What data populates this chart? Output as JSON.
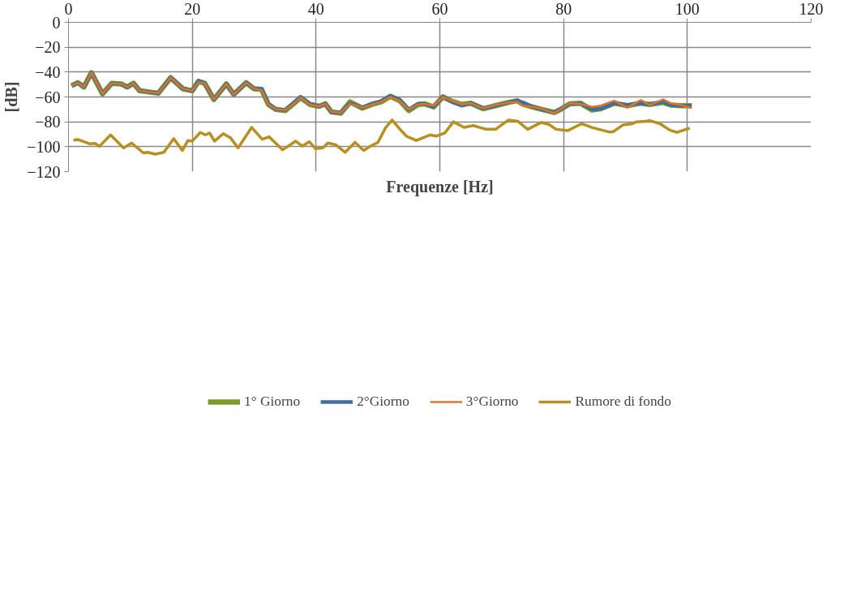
{
  "chart_data": {
    "type": "line",
    "xlabel": "Frequenze [Hz]",
    "ylabel": "[dB]",
    "xlim": [
      0,
      120
    ],
    "xticks": [
      0,
      20,
      40,
      60,
      80,
      100,
      120
    ],
    "ylim": [
      -120,
      0
    ],
    "yticks": [
      -120,
      -100,
      -80,
      -60,
      -40,
      -20,
      0
    ],
    "grid": true,
    "legend": "bottom",
    "marker": "none",
    "line_style": "solid",
    "series": [
      {
        "name": "1° Giorno",
        "color": "#7f9a2c",
        "x": [
          0.5,
          1.5,
          2.5,
          3.7,
          5.5,
          7,
          8.5,
          9.5,
          10.5,
          11.5,
          13,
          14.5,
          16.5,
          18.5,
          20,
          21,
          22,
          23.5,
          25.5,
          26.7,
          28.7,
          30,
          31.2,
          32.3,
          33.5,
          35,
          36,
          37.5,
          39,
          40.5,
          41.5,
          42.5,
          44,
          45.5,
          47.5,
          49,
          50.5,
          52,
          53.5,
          55,
          56.5,
          57.5,
          59,
          60.5,
          62,
          63.5,
          65,
          67,
          69,
          71,
          72.5,
          73.5,
          75,
          76.5,
          78.5,
          79.5,
          81,
          82.7,
          84.6,
          86,
          88.2,
          90.3,
          92.5,
          93.9,
          96.1,
          97.3,
          99,
          100.7
        ],
        "values": [
          -51,
          -48.5,
          -52,
          -40.5,
          -57.5,
          -49,
          -49.5,
          -52,
          -49,
          -55,
          -56,
          -57,
          -44.5,
          -53.5,
          -55,
          -47.5,
          -49,
          -62,
          -49.5,
          -58,
          -48.5,
          -53.5,
          -54,
          -66,
          -70,
          -71,
          -67,
          -60.5,
          -66,
          -67.5,
          -65.5,
          -72,
          -73,
          -64,
          -69,
          -66,
          -64,
          -59.5,
          -63,
          -71,
          -66,
          -65.5,
          -68,
          -60,
          -63.5,
          -66,
          -65,
          -69.5,
          -67,
          -64.5,
          -63,
          -66,
          -68,
          -70,
          -72.5,
          -70,
          -65.5,
          -65,
          -70.5,
          -69.5,
          -65,
          -67,
          -65,
          -66,
          -64.5,
          -66.5,
          -67,
          -67
        ]
      },
      {
        "name": "2°Giorno",
        "color": "#3d6fa3",
        "x": [
          0.5,
          1.5,
          2.5,
          3.7,
          5.5,
          7,
          8.5,
          9.5,
          10.5,
          11.5,
          13,
          14.5,
          16.5,
          18.5,
          20,
          21,
          22,
          23.5,
          25.5,
          26.7,
          28.7,
          30,
          31.2,
          32.3,
          33.5,
          35,
          36,
          37.5,
          39,
          40.5,
          41.5,
          42.5,
          44,
          45.5,
          47.5,
          49,
          50.5,
          52,
          53.5,
          55,
          56.5,
          57.5,
          59,
          60.5,
          62,
          63.5,
          65,
          67,
          69,
          71,
          72.5,
          73.5,
          75,
          76.5,
          78.5,
          79.5,
          81,
          82.7,
          84.6,
          86,
          88.2,
          90.3,
          92.5,
          93.9,
          96.1,
          97.3,
          99,
          100.7
        ],
        "values": [
          -51,
          -48.5,
          -52,
          -40.5,
          -57.5,
          -49,
          -49.5,
          -52,
          -49,
          -55,
          -56,
          -57,
          -44.5,
          -53.5,
          -55,
          -47,
          -49,
          -62,
          -49.5,
          -58,
          -48.5,
          -53.5,
          -53.5,
          -65.5,
          -70,
          -70.5,
          -66.5,
          -60,
          -65.5,
          -67.5,
          -65.5,
          -72.5,
          -72.5,
          -65,
          -68.5,
          -65.5,
          -63.5,
          -59,
          -62,
          -70,
          -65.5,
          -65.5,
          -68,
          -59.5,
          -64,
          -67,
          -65,
          -69,
          -67,
          -64.5,
          -63,
          -64.5,
          -68,
          -70,
          -72.5,
          -70,
          -65.5,
          -65,
          -70,
          -69.5,
          -65,
          -66.5,
          -65,
          -66,
          -64,
          -66.5,
          -67,
          -67
        ]
      },
      {
        "name": "3°Giorno",
        "color": "#e07328",
        "x": [
          0.5,
          1.5,
          2.5,
          3.7,
          5.5,
          7,
          8.5,
          9.5,
          10.5,
          11.5,
          13,
          14.5,
          16.5,
          18.5,
          20,
          21,
          22,
          23.5,
          25.5,
          26.7,
          28.7,
          30,
          31.2,
          32.3,
          33.5,
          35,
          36,
          37.5,
          39,
          40.5,
          41.5,
          42.5,
          44,
          45.5,
          47.5,
          49,
          50.5,
          52,
          53.5,
          55,
          56.5,
          57.5,
          59,
          60.5,
          62,
          63.5,
          65,
          67,
          69,
          71,
          72.5,
          73.5,
          75,
          76.5,
          78.5,
          79.5,
          81,
          82.7,
          84.6,
          86,
          88.2,
          90.3,
          92.5,
          93.9,
          96.1,
          97.3,
          99,
          100.7
        ],
        "values": [
          -51,
          -48.5,
          -52,
          -40.5,
          -57.5,
          -49,
          -49.5,
          -52,
          -49,
          -55,
          -56,
          -57,
          -44.5,
          -53.5,
          -55,
          -48,
          -49,
          -62,
          -49.5,
          -58,
          -48.5,
          -53.5,
          -54.5,
          -66,
          -70,
          -70.5,
          -67,
          -60.5,
          -66,
          -67.5,
          -65.5,
          -72,
          -72.5,
          -65.5,
          -68.5,
          -66,
          -64,
          -60,
          -63,
          -70,
          -66,
          -65.5,
          -67,
          -60,
          -63,
          -66,
          -65,
          -69,
          -66.5,
          -64.5,
          -64,
          -67,
          -68,
          -69.5,
          -73,
          -70,
          -65,
          -65.5,
          -68,
          -67,
          -63,
          -68.5,
          -62.5,
          -66.5,
          -62,
          -65,
          -66.5,
          -69
        ]
      },
      {
        "name": "Rumore di fondo",
        "color": "#b8901f",
        "x": [
          0.8,
          1.5,
          3.4,
          4.3,
          5.0,
          6.8,
          8.9,
          10.2,
          12.1,
          12.8,
          14.0,
          15.4,
          17.0,
          18.4,
          19.3,
          20.0,
          21.3,
          22.1,
          22.8,
          23.6,
          25.0,
          26.2,
          27.4,
          29.6,
          31.3,
          32.4,
          34.6,
          36.7,
          37.8,
          38.9,
          39.9,
          41.1,
          41.9,
          43.2,
          44.7,
          46.3,
          47.7,
          48.8,
          50.0,
          51.2,
          52.3,
          53.3,
          54.6,
          56.2,
          58.4,
          59.4,
          60.8,
          62.2,
          63.9,
          65.4,
          67.5,
          69.0,
          71.1,
          72.6,
          74.2,
          76.4,
          77.6,
          78.8,
          80.7,
          82.9,
          84.6,
          87.2,
          88.0,
          89.6,
          91.1,
          91.8,
          93.2,
          93.9,
          95.6,
          97.1,
          98.3,
          100.4
        ],
        "values": [
          -94.7,
          -94.2,
          -97.6,
          -97.3,
          -99.7,
          -90.5,
          -101,
          -97,
          -105,
          -104.5,
          -106,
          -104.5,
          -93.5,
          -103,
          -95,
          -95.5,
          -88.5,
          -90.5,
          -89,
          -95.5,
          -89.5,
          -93,
          -101,
          -84.5,
          -94,
          -92,
          -102.5,
          -95.5,
          -99.5,
          -96,
          -101.5,
          -101,
          -97,
          -98.5,
          -104.5,
          -96.5,
          -103,
          -99.5,
          -96.5,
          -85,
          -78.5,
          -84.5,
          -91.5,
          -95,
          -90.5,
          -91.5,
          -89,
          -80,
          -84.5,
          -83,
          -86,
          -86,
          -78.5,
          -79.5,
          -86,
          -80.5,
          -82,
          -86,
          -87,
          -81.5,
          -84.5,
          -88,
          -88,
          -82.5,
          -81.5,
          -80,
          -79.5,
          -79,
          -81.5,
          -86.5,
          -88.5,
          -85
        ]
      }
    ]
  }
}
